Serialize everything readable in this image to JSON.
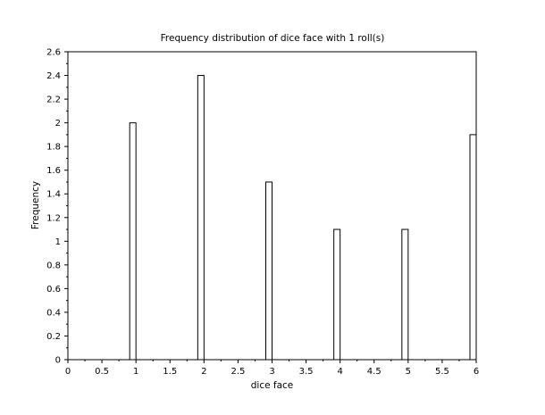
{
  "chart_data": {
    "type": "bar",
    "title": "Frequency distribution of dice face with 1 roll(s)",
    "xlabel": "dice face",
    "ylabel": "Frequency",
    "x": [
      1,
      2,
      3,
      4,
      5,
      6
    ],
    "values": [
      2.0,
      2.4,
      1.5,
      1.1,
      1.1,
      1.9
    ],
    "xlim": [
      0,
      6
    ],
    "ylim": [
      0,
      2.6
    ],
    "xticks": [
      "0",
      "0.5",
      "1",
      "1.5",
      "2",
      "2.5",
      "3",
      "3.5",
      "4",
      "4.5",
      "5",
      "5.5",
      "6"
    ],
    "yticks": [
      "0",
      "0.2",
      "0.4",
      "0.6",
      "0.8",
      "1",
      "1.2",
      "1.4",
      "1.6",
      "1.8",
      "2",
      "2.2",
      "2.4",
      "2.6"
    ],
    "bar_fill": "#ffffff",
    "bar_stroke": "#000000",
    "grid": false,
    "legend": "none"
  }
}
